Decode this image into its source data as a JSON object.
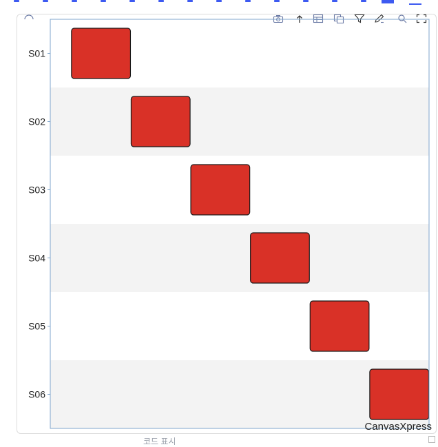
{
  "chart_data": {
    "type": "heatmap",
    "samples": [
      "S01",
      "S02",
      "S03",
      "S04",
      "S05",
      "S06"
    ],
    "blocks": [
      {
        "sample": "S01",
        "start": 0,
        "end": 1
      },
      {
        "sample": "S02",
        "start": 1,
        "end": 2
      },
      {
        "sample": "S03",
        "start": 2,
        "end": 3
      },
      {
        "sample": "S04",
        "start": 3,
        "end": 4
      },
      {
        "sample": "S05",
        "start": 4,
        "end": 5
      },
      {
        "sample": "S06",
        "start": 5,
        "end": 6
      }
    ],
    "xlim": [
      -0.35,
      6
    ],
    "block_color": "#d93127",
    "band_color": "#f3f3f3",
    "axis_color": "#7fa6cc"
  },
  "watermark": "CanvasXpress",
  "footer_text": "코드 표시",
  "toolbar": {
    "icons": [
      "camera-icon",
      "upload-icon",
      "table-icon",
      "copy-icon",
      "filter-icon",
      "edit-icon",
      "search-icon",
      "expand-icon"
    ]
  }
}
